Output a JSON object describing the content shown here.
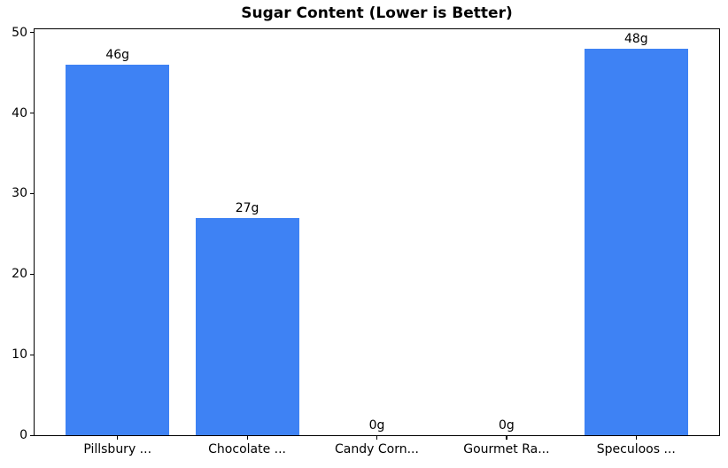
{
  "chart_data": {
    "type": "bar",
    "title": "Sugar Content (Lower is Better)",
    "categories": [
      "Pillsbury ...",
      "Chocolate ...",
      "Candy Corn...",
      "Gourmet Ra...",
      "Speculoos ..."
    ],
    "values": [
      46,
      27,
      0,
      0,
      48
    ],
    "value_labels": [
      "46g",
      "27g",
      "0g",
      "0g",
      "48g"
    ],
    "xlabel": "",
    "ylabel": "",
    "ylim": [
      0,
      50.4
    ],
    "xlim": [
      -0.64,
      4.64
    ],
    "yticks": [
      0,
      10,
      20,
      30,
      40,
      50
    ],
    "bar_color": "#3e82f4",
    "axis_color": "#000000",
    "grid": false,
    "legend": false
  }
}
